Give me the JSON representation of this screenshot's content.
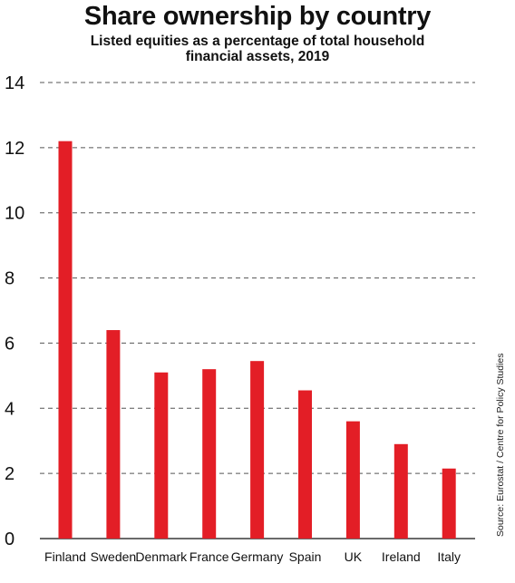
{
  "title": "Share ownership by country",
  "subtitle": "Listed equities as a percentage of total household financial assets, 2019",
  "source": "Source: Eurostat / Centre for Policy Studies",
  "colors": {
    "bar": "#e31e26",
    "grid": "#555555",
    "text": "#111111"
  },
  "chart_data": {
    "type": "bar",
    "title": "Share ownership by country",
    "subtitle": "Listed equities as a percentage of total household financial assets, 2019",
    "categories": [
      "Finland",
      "Sweden",
      "Denmark",
      "France",
      "Germany",
      "Spain",
      "UK",
      "Ireland",
      "Italy"
    ],
    "values": [
      12.2,
      6.4,
      5.1,
      5.2,
      5.45,
      4.55,
      3.6,
      2.9,
      2.15
    ],
    "ylim": [
      0,
      14
    ],
    "yticks": [
      0,
      2,
      4,
      6,
      8,
      10,
      12,
      14
    ],
    "grid": true,
    "xlabel": "",
    "ylabel": ""
  }
}
